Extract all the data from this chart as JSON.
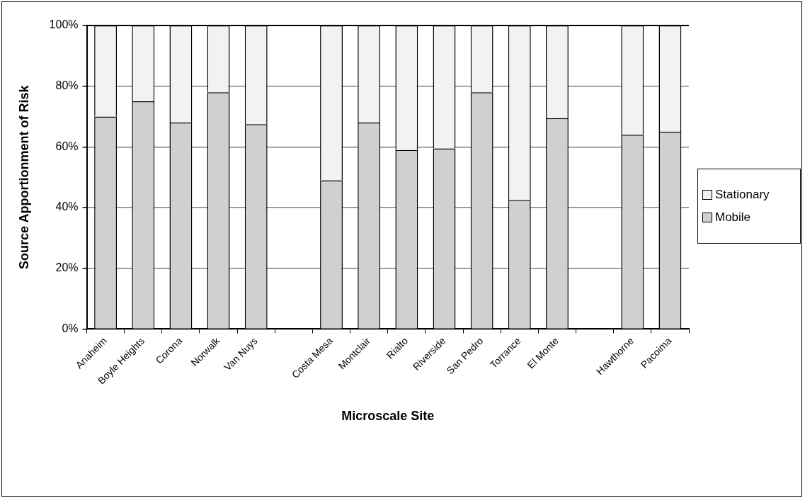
{
  "chart_data": {
    "type": "bar",
    "stacked": true,
    "xlabel": "Microscale Site",
    "ylabel": "Source Apportionment of Risk",
    "categories": [
      "Anaheim",
      "Boyle Heights",
      "Corona",
      "Norwalk",
      "Van Nuys",
      null,
      "Costa Mesa",
      "Montclair",
      "Rialto",
      "Riverside",
      "San Pedro",
      "Torrance",
      "El Monte",
      null,
      "Hawthorne",
      "Pacoima"
    ],
    "series": [
      {
        "name": "Mobile",
        "color": "#d0d0d0",
        "values": [
          70,
          75,
          68,
          78,
          67.5,
          null,
          49,
          68,
          59,
          59.5,
          78,
          42.5,
          69.5,
          null,
          64,
          65
        ]
      },
      {
        "name": "Stationary",
        "color": "#f2f2f2",
        "values": [
          30,
          25,
          32,
          22,
          32.5,
          null,
          51,
          32,
          41,
          40.5,
          22,
          57.5,
          30.5,
          null,
          36,
          35
        ]
      }
    ],
    "ylim": [
      0,
      100
    ],
    "yticks": [
      {
        "value": 0,
        "label": "0%"
      },
      {
        "value": 20,
        "label": "20%"
      },
      {
        "value": 40,
        "label": "40%"
      },
      {
        "value": 60,
        "label": "60%"
      },
      {
        "value": 80,
        "label": "80%"
      },
      {
        "value": 100,
        "label": "100%"
      }
    ],
    "grid": "y",
    "legend": "right"
  }
}
